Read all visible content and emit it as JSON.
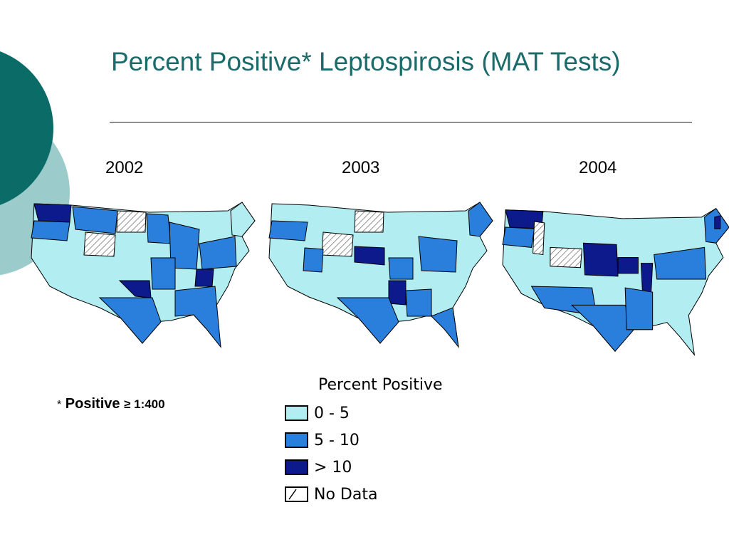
{
  "title": "Percent Positive* Leptospirosis (MAT Tests)",
  "years": [
    "2002",
    "2003",
    "2004"
  ],
  "footnote": {
    "star": "*",
    "word": "Positive",
    "rest": "≥ 1:400"
  },
  "legend": {
    "title": "Percent Positive",
    "items": [
      {
        "label": "0 - 5",
        "color": "#b2edf2"
      },
      {
        "label": "5 - 10",
        "color": "#2b7fdc"
      },
      {
        "label": "> 10",
        "color": "#0d1a8c"
      },
      {
        "label": "No Data",
        "color": "hatched"
      }
    ]
  },
  "colors": {
    "accent_dark": "#0b6b67",
    "accent_light": "#9ccbcc",
    "title": "#1a6b6a"
  }
}
